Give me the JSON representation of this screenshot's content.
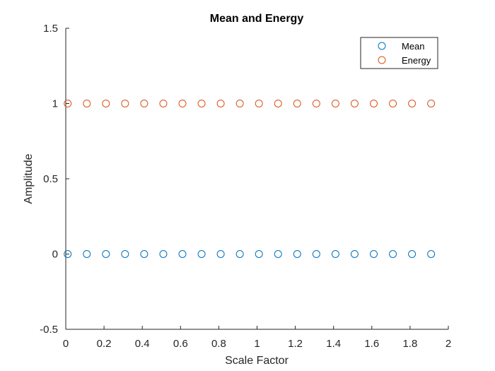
{
  "chart_data": {
    "type": "scatter",
    "title": "Mean and Energy",
    "xlabel": "Scale Factor",
    "ylabel": "Amplitude",
    "xlim": [
      0,
      2
    ],
    "ylim": [
      -0.5,
      1.5
    ],
    "x_ticks": [
      "0",
      "0.2",
      "0.4",
      "0.6",
      "0.8",
      "1",
      "1.2",
      "1.4",
      "1.6",
      "1.8",
      "2"
    ],
    "y_ticks": [
      "-0.5",
      "0",
      "0.5",
      "1",
      "1.5"
    ],
    "grid": false,
    "legend_position": "top-right",
    "x": [
      0.01,
      0.11,
      0.21,
      0.31,
      0.41,
      0.51,
      0.61,
      0.71,
      0.81,
      0.91,
      1.01,
      1.11,
      1.21,
      1.31,
      1.41,
      1.51,
      1.61,
      1.71,
      1.81,
      1.91
    ],
    "series": [
      {
        "name": "Mean",
        "color": "#0072BD",
        "marker": "o",
        "values": [
          0,
          0,
          0,
          0,
          0,
          0,
          0,
          0,
          0,
          0,
          0,
          0,
          0,
          0,
          0,
          0,
          0,
          0,
          0,
          0
        ]
      },
      {
        "name": "Energy",
        "color": "#D95319",
        "marker": "o",
        "values": [
          1,
          1,
          1,
          1,
          1,
          1,
          1,
          1,
          1,
          1,
          1,
          1,
          1,
          1,
          1,
          1,
          1,
          1,
          1,
          1
        ]
      }
    ]
  }
}
